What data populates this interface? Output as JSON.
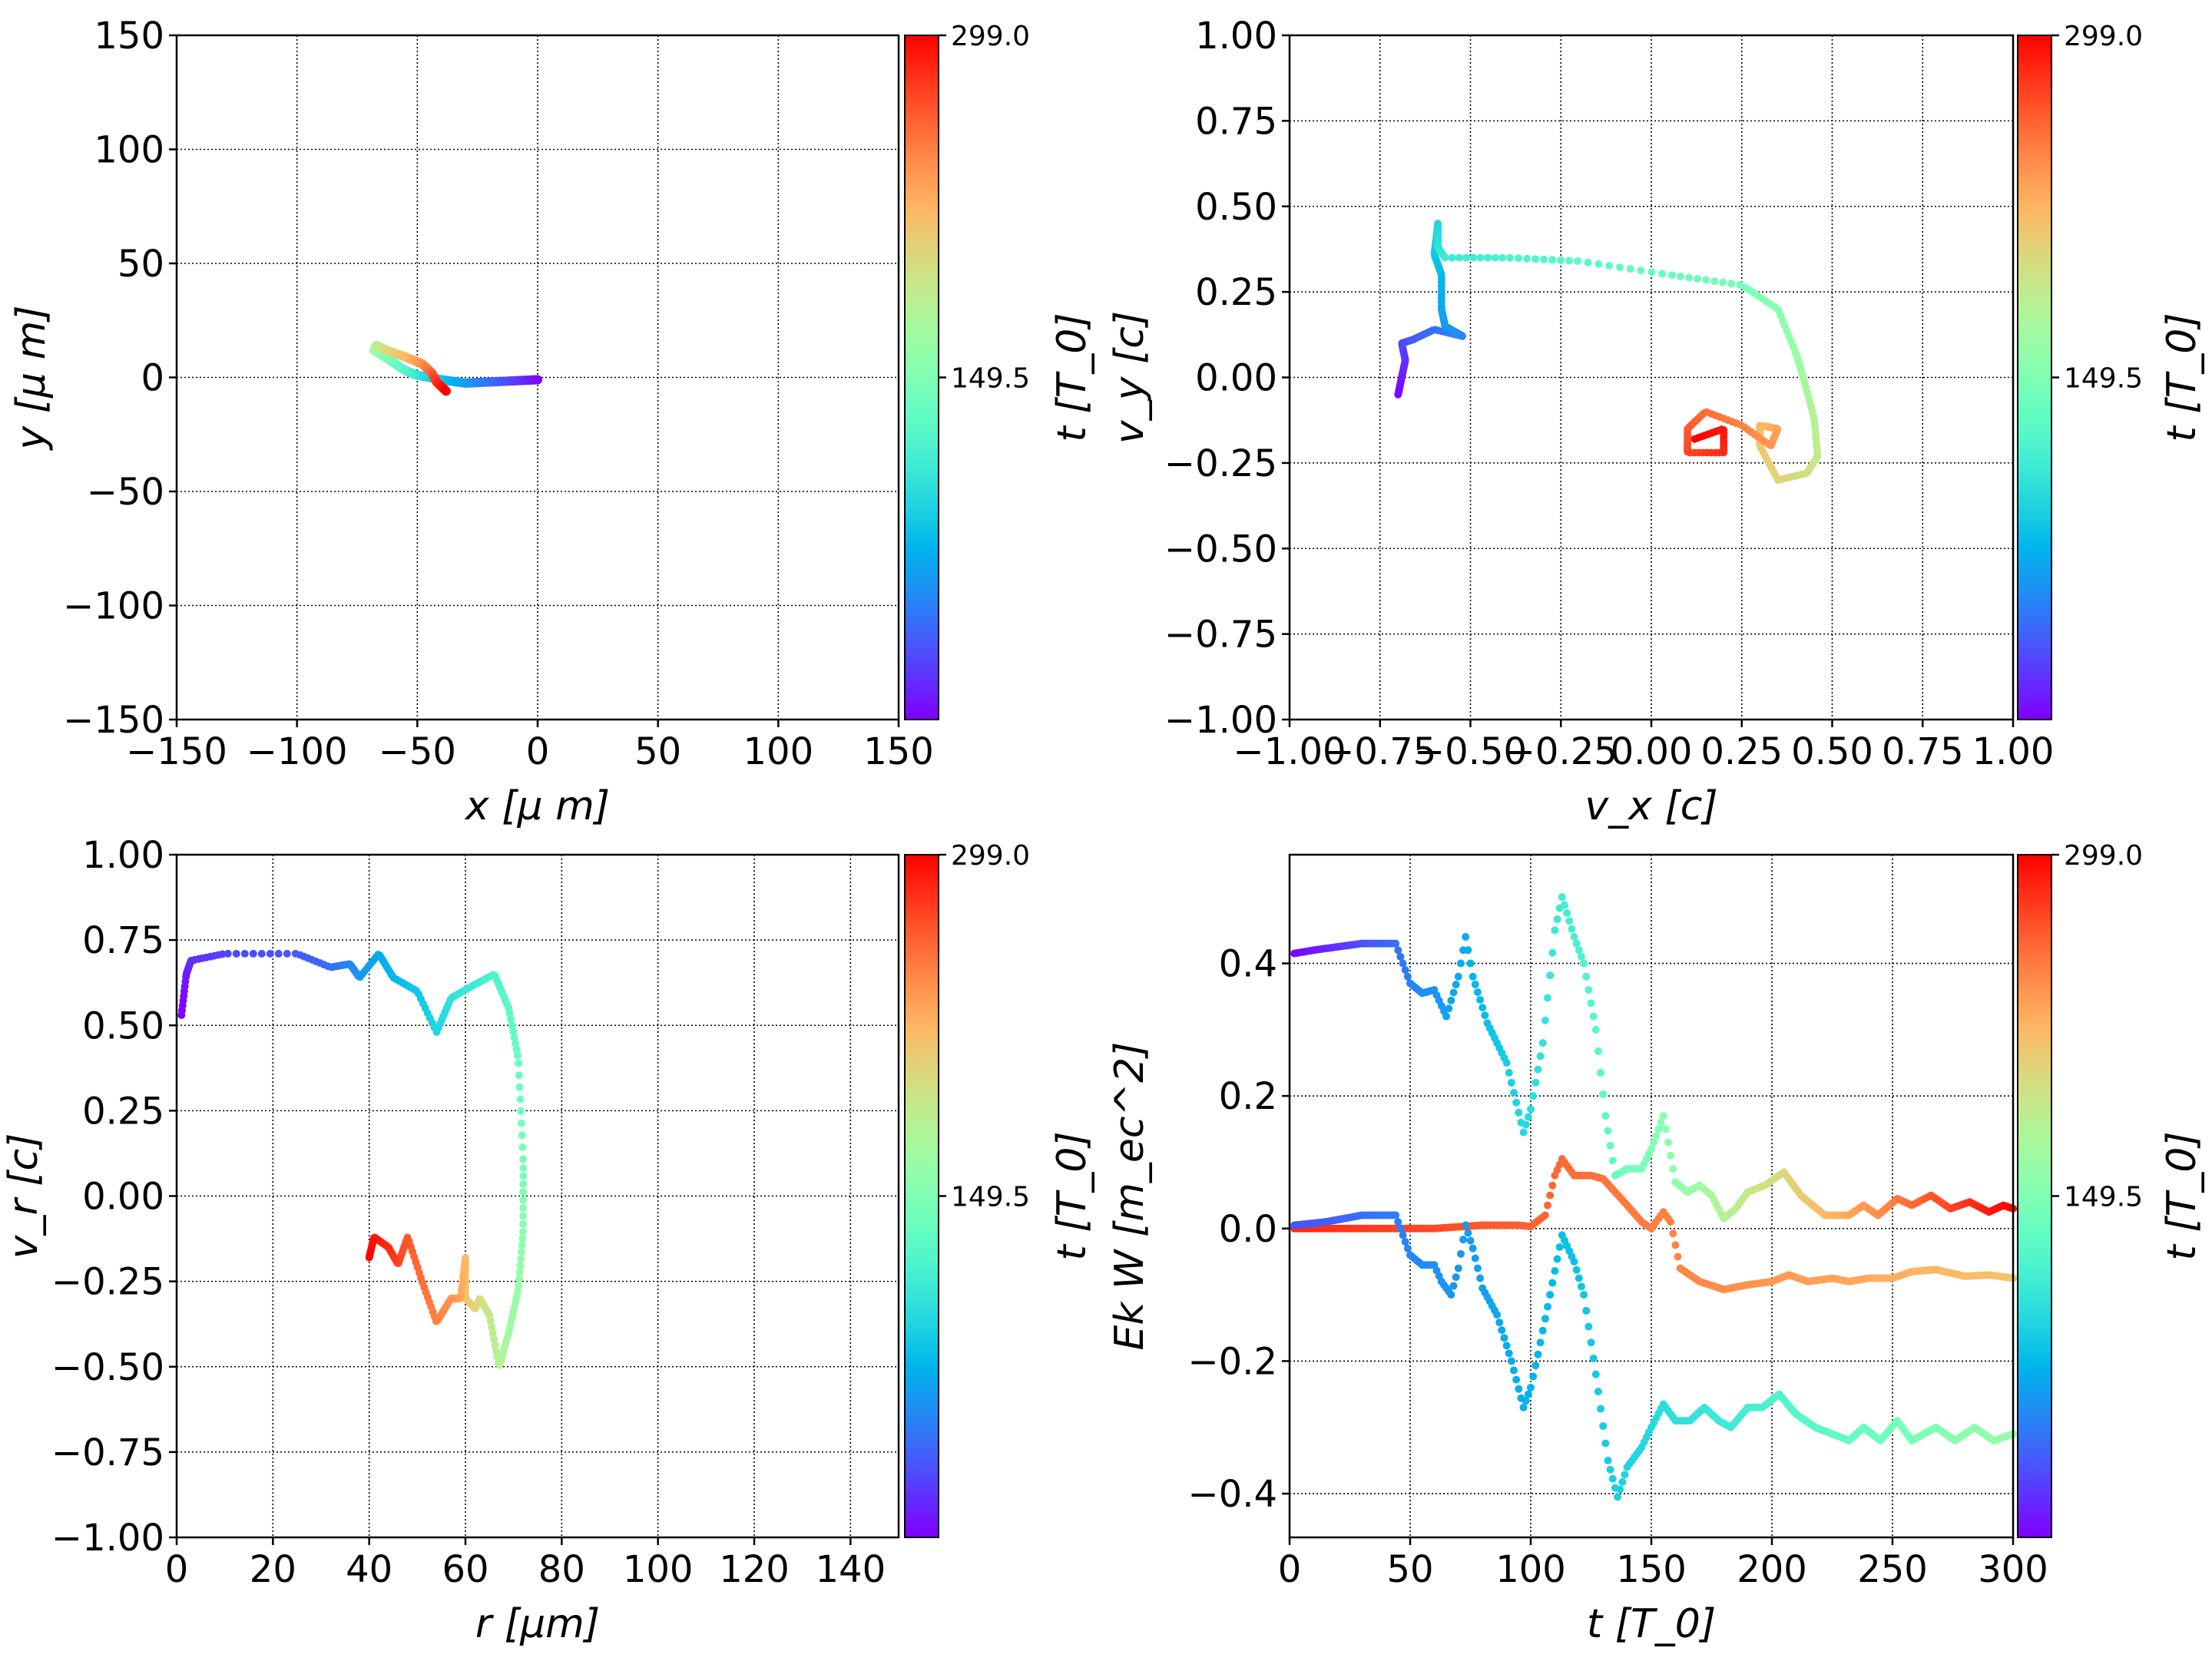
{
  "colormap": "rainbow",
  "chart_data": [
    {
      "id": "xy",
      "type": "scatter",
      "xlabel": "x  [μ m]",
      "ylabel": "y  [μ m]",
      "xlim": [
        -150,
        150
      ],
      "ylim": [
        -150,
        150
      ],
      "xticks": [
        -150,
        -100,
        -50,
        0,
        50,
        100,
        150
      ],
      "xtick_labels": [
        "−150",
        "−100",
        "−50",
        "0",
        "50",
        "100",
        "150"
      ],
      "yticks": [
        -150,
        -100,
        -50,
        0,
        50,
        100,
        150
      ],
      "ytick_labels": [
        "−150",
        "−100",
        "−50",
        "0",
        "50",
        "100",
        "150"
      ],
      "grid": true,
      "colorbar": {
        "label": "t [T_0]",
        "ticks": [
          "299.0",
          "149.5"
        ],
        "range": [
          0,
          299
        ]
      },
      "series": [
        {
          "cmap_range": [
            0,
            1
          ],
          "points": [
            [
              0,
              -1
            ],
            [
              -10,
              -1.5
            ],
            [
              -20,
              -2
            ],
            [
              -30,
              -2.5
            ],
            [
              -40,
              -1
            ],
            [
              -50,
              1
            ],
            [
              -55,
              3
            ],
            [
              -62,
              8
            ],
            [
              -68,
              12
            ],
            [
              -67,
              14
            ],
            [
              -63,
              12
            ],
            [
              -55,
              9
            ],
            [
              -48,
              6
            ],
            [
              -44,
              2
            ],
            [
              -42,
              -2
            ],
            [
              -38,
              -6
            ]
          ]
        }
      ]
    },
    {
      "id": "vxvy",
      "type": "scatter",
      "xlabel": "v_x [c]",
      "ylabel": "v_y [c]",
      "xlim": [
        -1,
        1
      ],
      "ylim": [
        -1,
        1
      ],
      "xticks": [
        -1,
        -0.75,
        -0.5,
        -0.25,
        0,
        0.25,
        0.5,
        0.75,
        1
      ],
      "xtick_labels": [
        "−1.00",
        "−0.75",
        "−0.50",
        "−0.25",
        "0.00",
        "0.25",
        "0.50",
        "0.75",
        "1.00"
      ],
      "yticks": [
        -1,
        -0.75,
        -0.5,
        -0.25,
        0,
        0.25,
        0.5,
        0.75,
        1
      ],
      "ytick_labels": [
        "−1.00",
        "−0.75",
        "−0.50",
        "−0.25",
        "0.00",
        "0.25",
        "0.50",
        "0.75",
        "1.00"
      ],
      "grid": true,
      "colorbar": {
        "label": "t [T_0]",
        "ticks": [
          "299.0",
          "149.5"
        ],
        "range": [
          0,
          299
        ]
      },
      "series": [
        {
          "cmap_range": [
            0,
            1
          ],
          "points": [
            [
              -0.7,
              -0.05
            ],
            [
              -0.69,
              0
            ],
            [
              -0.68,
              0.05
            ],
            [
              -0.69,
              0.1
            ],
            [
              -0.66,
              0.11
            ],
            [
              -0.6,
              0.14
            ],
            [
              -0.52,
              0.12
            ],
            [
              -0.57,
              0.15
            ],
            [
              -0.58,
              0.2
            ],
            [
              -0.58,
              0.3
            ],
            [
              -0.6,
              0.36
            ],
            [
              -0.59,
              0.45
            ],
            [
              -0.59,
              0.38
            ],
            [
              -0.57,
              0.35
            ],
            [
              -0.4,
              0.35
            ],
            [
              -0.2,
              0.34
            ],
            [
              0.05,
              0.3
            ],
            [
              0.25,
              0.27
            ],
            [
              0.35,
              0.2
            ],
            [
              0.4,
              0.07
            ],
            [
              0.42,
              0
            ],
            [
              0.45,
              -0.12
            ],
            [
              0.46,
              -0.23
            ],
            [
              0.43,
              -0.28
            ],
            [
              0.35,
              -0.3
            ],
            [
              0.3,
              -0.2
            ],
            [
              0.3,
              -0.14
            ],
            [
              0.35,
              -0.15
            ],
            [
              0.33,
              -0.2
            ],
            [
              0.25,
              -0.14
            ],
            [
              0.15,
              -0.1
            ],
            [
              0.1,
              -0.15
            ],
            [
              0.1,
              -0.22
            ],
            [
              0.2,
              -0.22
            ],
            [
              0.2,
              -0.15
            ],
            [
              0.12,
              -0.18
            ]
          ]
        }
      ]
    },
    {
      "id": "rvr",
      "type": "scatter",
      "xlabel": "r [μm]",
      "ylabel": "v_r [c]",
      "xlim": [
        0,
        150
      ],
      "ylim": [
        -1,
        1
      ],
      "xticks": [
        0,
        20,
        40,
        60,
        80,
        100,
        120,
        140
      ],
      "xtick_labels": [
        "0",
        "20",
        "40",
        "60",
        "80",
        "100",
        "120",
        "140"
      ],
      "yticks": [
        -1,
        -0.75,
        -0.5,
        -0.25,
        0,
        0.25,
        0.5,
        0.75,
        1
      ],
      "ytick_labels": [
        "−1.00",
        "−0.75",
        "−0.50",
        "−0.25",
        "0.00",
        "0.25",
        "0.50",
        "0.75",
        "1.00"
      ],
      "grid": true,
      "colorbar": {
        "label": "t [T_0]",
        "ticks": [
          "299.0",
          "149.5"
        ],
        "range": [
          0,
          299
        ]
      },
      "series": [
        {
          "cmap_range": [
            0,
            1
          ],
          "points": [
            [
              1,
              0.53
            ],
            [
              2,
              0.65
            ],
            [
              3,
              0.69
            ],
            [
              10,
              0.71
            ],
            [
              25,
              0.71
            ],
            [
              32,
              0.67
            ],
            [
              36,
              0.68
            ],
            [
              38,
              0.64
            ],
            [
              42,
              0.71
            ],
            [
              45,
              0.64
            ],
            [
              50,
              0.6
            ],
            [
              54,
              0.48
            ],
            [
              57,
              0.58
            ],
            [
              62,
              0.62
            ],
            [
              66,
              0.65
            ],
            [
              69,
              0.55
            ],
            [
              71,
              0.4
            ],
            [
              72,
              0.1
            ],
            [
              72,
              -0.1
            ],
            [
              71,
              -0.27
            ],
            [
              69,
              -0.4
            ],
            [
              67,
              -0.5
            ],
            [
              65,
              -0.35
            ],
            [
              63,
              -0.3
            ],
            [
              62,
              -0.33
            ],
            [
              60,
              -0.3
            ],
            [
              60,
              -0.18
            ],
            [
              59,
              -0.3
            ],
            [
              57,
              -0.3
            ],
            [
              54,
              -0.37
            ],
            [
              51,
              -0.25
            ],
            [
              48,
              -0.12
            ],
            [
              46,
              -0.2
            ],
            [
              44,
              -0.15
            ],
            [
              41,
              -0.12
            ],
            [
              40,
              -0.18
            ]
          ]
        }
      ]
    },
    {
      "id": "tEkW",
      "type": "scatter",
      "xlabel": "t [T_0]",
      "ylabel": "Ek W [m_ec^2]",
      "xlim": [
        0,
        300
      ],
      "ylim": [
        -0.466,
        0.564
      ],
      "xticks": [
        0,
        50,
        100,
        150,
        200,
        250,
        300
      ],
      "xtick_labels": [
        "0",
        "50",
        "100",
        "150",
        "200",
        "250",
        "300"
      ],
      "yticks": [
        -0.4,
        -0.2,
        0,
        0.2,
        0.4
      ],
      "ytick_labels": [
        "−0.4",
        "−0.2",
        "0.0",
        "0.2",
        "0.4"
      ],
      "grid": true,
      "colorbar": {
        "label": "t [T_0]",
        "ticks": [
          "299.0",
          "149.5"
        ],
        "range": [
          0,
          299
        ]
      },
      "series": [
        {
          "cmap_range": [
            0,
            1
          ],
          "points": [
            [
              2,
              0.415
            ],
            [
              10,
              0.42
            ],
            [
              30,
              0.43
            ],
            [
              44,
              0.43
            ],
            [
              50,
              0.37
            ],
            [
              55,
              0.355
            ],
            [
              60,
              0.36
            ],
            [
              65,
              0.32
            ],
            [
              70,
              0.38
            ],
            [
              73,
              0.44
            ],
            [
              76,
              0.38
            ],
            [
              82,
              0.31
            ],
            [
              90,
              0.25
            ],
            [
              97,
              0.145
            ],
            [
              100,
              0.18
            ],
            [
              105,
              0.28
            ],
            [
              110,
              0.45
            ],
            [
              113,
              0.5
            ],
            [
              118,
              0.44
            ],
            [
              122,
              0.4
            ],
            [
              127,
              0.3
            ],
            [
              131,
              0.17
            ],
            [
              135,
              0.08
            ],
            [
              140,
              0.09
            ],
            [
              146,
              0.09
            ],
            [
              150,
              0.12
            ],
            [
              155,
              0.17
            ],
            [
              160,
              0.07
            ],
            [
              165,
              0.055
            ],
            [
              170,
              0.065
            ],
            [
              175,
              0.05
            ],
            [
              180,
              0.015
            ],
            [
              185,
              0.03
            ],
            [
              190,
              0.055
            ],
            [
              197,
              0.065
            ],
            [
              205,
              0.085
            ],
            [
              212,
              0.05
            ],
            [
              222,
              0.02
            ],
            [
              232,
              0.02
            ],
            [
              238,
              0.035
            ],
            [
              244,
              0.02
            ],
            [
              252,
              0.045
            ],
            [
              258,
              0.035
            ],
            [
              266,
              0.05
            ],
            [
              274,
              0.03
            ],
            [
              282,
              0.04
            ],
            [
              290,
              0.025
            ],
            [
              296,
              0.035
            ],
            [
              300,
              0.03
            ]
          ]
        },
        {
          "cmap_range": [
            0.95,
            0.72
          ],
          "points": [
            [
              2,
              0
            ],
            [
              40,
              0
            ],
            [
              60,
              0
            ],
            [
              80,
              0.005
            ],
            [
              95,
              0.005
            ],
            [
              100,
              0.003
            ],
            [
              106,
              0.02
            ],
            [
              110,
              0.08
            ],
            [
              113,
              0.105
            ],
            [
              118,
              0.08
            ],
            [
              125,
              0.08
            ],
            [
              130,
              0.075
            ],
            [
              140,
              0.035
            ],
            [
              146,
              0.01
            ],
            [
              150,
              0
            ],
            [
              155,
              0.025
            ],
            [
              158,
              0.01
            ],
            [
              162,
              -0.06
            ],
            [
              170,
              -0.08
            ],
            [
              180,
              -0.092
            ],
            [
              190,
              -0.085
            ],
            [
              200,
              -0.08
            ],
            [
              207,
              -0.07
            ],
            [
              215,
              -0.08
            ],
            [
              225,
              -0.075
            ],
            [
              232,
              -0.08
            ],
            [
              240,
              -0.075
            ],
            [
              250,
              -0.075
            ],
            [
              258,
              -0.065
            ],
            [
              268,
              -0.062
            ],
            [
              280,
              -0.072
            ],
            [
              290,
              -0.07
            ],
            [
              300,
              -0.075
            ]
          ]
        },
        {
          "cmap_range": [
            0.1,
            0.55
          ],
          "points": [
            [
              2,
              0.005
            ],
            [
              15,
              0.01
            ],
            [
              30,
              0.02
            ],
            [
              44,
              0.02
            ],
            [
              50,
              -0.04
            ],
            [
              55,
              -0.055
            ],
            [
              60,
              -0.055
            ],
            [
              63,
              -0.08
            ],
            [
              67,
              -0.1
            ],
            [
              70,
              -0.06
            ],
            [
              73,
              0.005
            ],
            [
              76,
              -0.03
            ],
            [
              80,
              -0.09
            ],
            [
              86,
              -0.13
            ],
            [
              92,
              -0.2
            ],
            [
              97,
              -0.27
            ],
            [
              100,
              -0.24
            ],
            [
              103,
              -0.19
            ],
            [
              108,
              -0.1
            ],
            [
              113,
              -0.01
            ],
            [
              118,
              -0.05
            ],
            [
              122,
              -0.1
            ],
            [
              127,
              -0.22
            ],
            [
              132,
              -0.35
            ],
            [
              136,
              -0.405
            ],
            [
              140,
              -0.36
            ],
            [
              146,
              -0.33
            ],
            [
              150,
              -0.3
            ],
            [
              155,
              -0.265
            ],
            [
              160,
              -0.29
            ],
            [
              166,
              -0.29
            ],
            [
              172,
              -0.27
            ],
            [
              178,
              -0.29
            ],
            [
              183,
              -0.3
            ],
            [
              190,
              -0.27
            ],
            [
              196,
              -0.27
            ],
            [
              203,
              -0.25
            ],
            [
              210,
              -0.28
            ],
            [
              218,
              -0.3
            ],
            [
              225,
              -0.31
            ],
            [
              232,
              -0.32
            ],
            [
              238,
              -0.3
            ],
            [
              245,
              -0.32
            ],
            [
              252,
              -0.29
            ],
            [
              258,
              -0.32
            ],
            [
              268,
              -0.3
            ],
            [
              276,
              -0.32
            ],
            [
              284,
              -0.3
            ],
            [
              292,
              -0.32
            ],
            [
              300,
              -0.31
            ]
          ]
        }
      ]
    }
  ]
}
